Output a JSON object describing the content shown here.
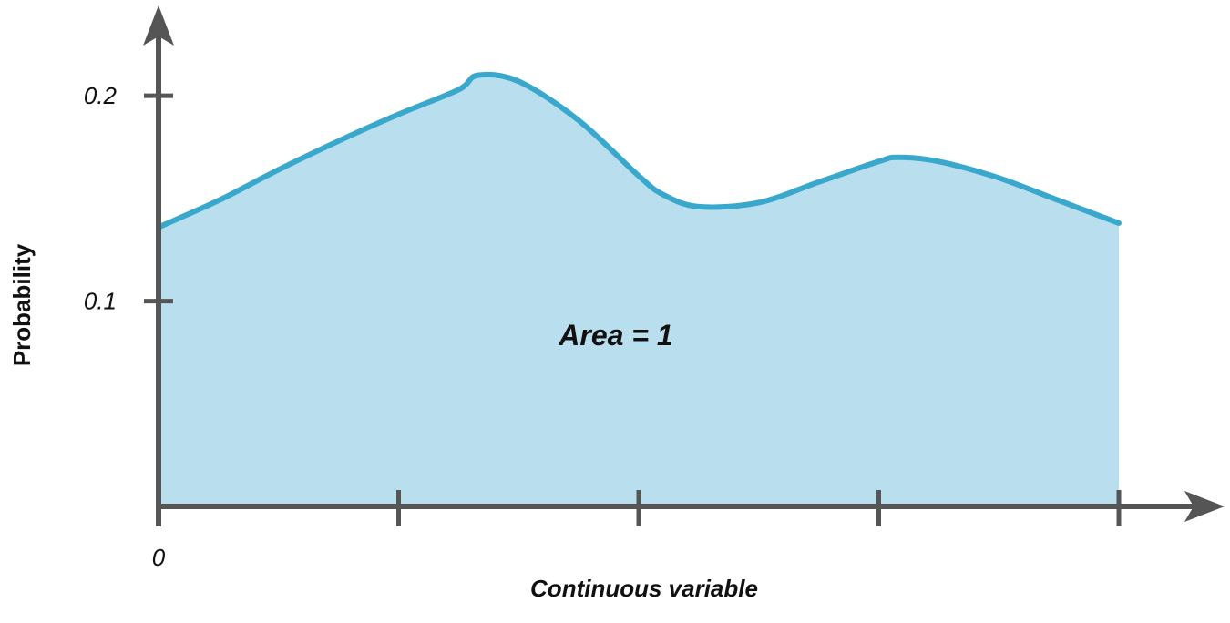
{
  "chart_data": {
    "type": "area",
    "xlabel": "Continuous variable",
    "ylabel": "Probability",
    "x_tick_labels": [
      "0",
      "",
      "",
      "",
      ""
    ],
    "x_ticks": [
      0,
      1,
      2,
      3,
      4
    ],
    "xlim": [
      0,
      4
    ],
    "y_ticks": [
      0.1,
      0.2
    ],
    "y_tick_labels": [
      "0.1",
      "0.2"
    ],
    "ylim": [
      0,
      0.24
    ],
    "annotation": "Area = 1",
    "grid": false,
    "colors": {
      "fill": "#b9dfee",
      "line": "#3aa8cd",
      "axis": "#555555"
    },
    "series": [
      {
        "x": [
          0,
          0.25,
          0.5,
          0.75,
          1.0,
          1.25,
          1.33,
          1.5,
          1.75,
          2.0,
          2.1,
          2.25,
          2.5,
          2.75,
          3.0,
          3.08,
          3.25,
          3.5,
          3.75,
          4.0
        ],
        "y": [
          0.136,
          0.149,
          0.164,
          0.178,
          0.191,
          0.203,
          0.21,
          0.207,
          0.188,
          0.161,
          0.152,
          0.146,
          0.148,
          0.158,
          0.168,
          0.17,
          0.168,
          0.16,
          0.149,
          0.138
        ]
      }
    ]
  }
}
